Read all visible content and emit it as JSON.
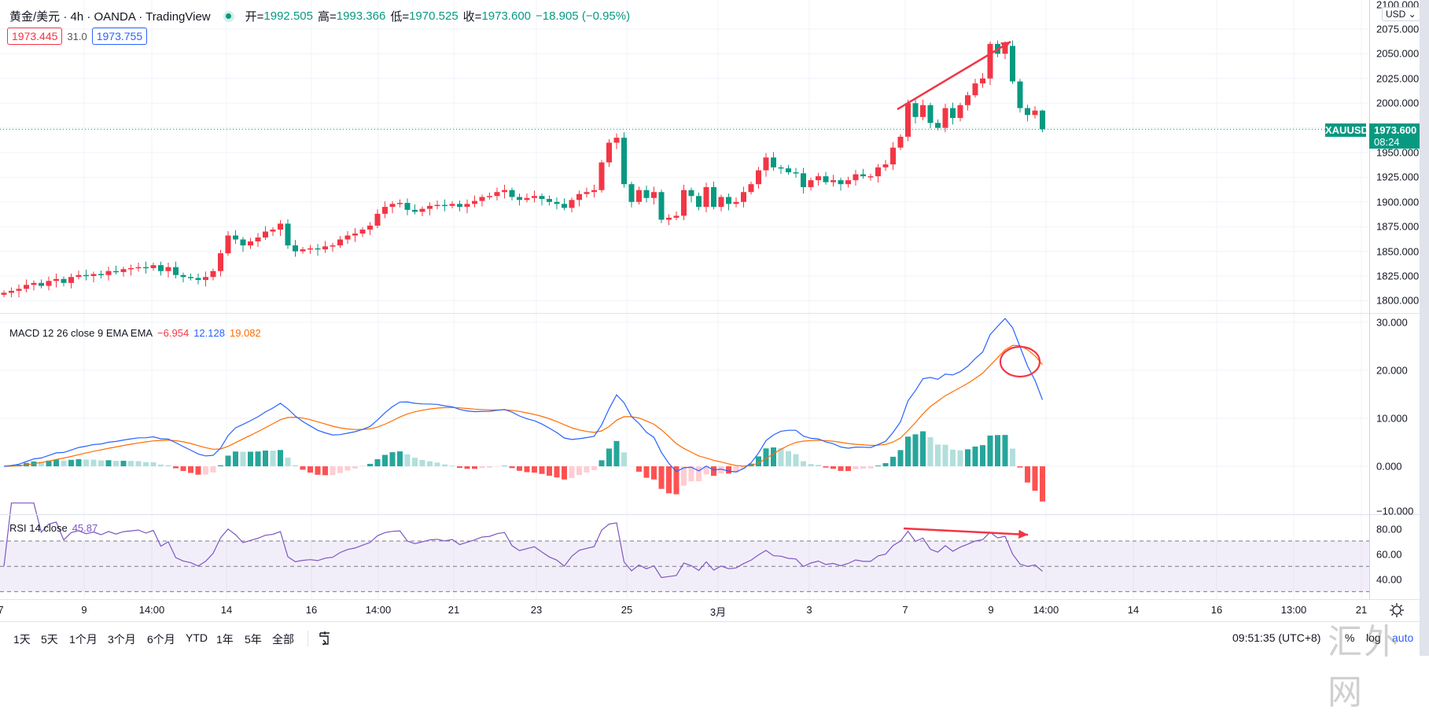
{
  "header": {
    "title": "黄金/美元 · 4h · OANDA · TradingView",
    "ohlc": {
      "open_label": "开=",
      "open": "1992.505",
      "high_label": "高=",
      "high": "1993.366",
      "low_label": "低=",
      "low": "1970.525",
      "close_label": "收=",
      "close": "1973.600",
      "change": "−18.905 (−0.95%)"
    },
    "bid": "1973.445",
    "spread": "31.0",
    "ask": "1973.755"
  },
  "axis": {
    "currency": "USD ⌄",
    "price_labels": [
      "2100.000",
      "2075.000",
      "2050.000",
      "2025.000",
      "2000.000",
      "1950.000",
      "1925.000",
      "1900.000",
      "1875.000",
      "1850.000",
      "1825.000",
      "1800.000"
    ],
    "macd_labels": [
      "30.000",
      "20.000",
      "10.000",
      "0.000",
      "−10.000"
    ],
    "rsi_labels": [
      "80.00",
      "60.00",
      "40.00"
    ],
    "symbol_tag": "XAUUSD",
    "last_price": "1973.600",
    "countdown": "08:24"
  },
  "macd": {
    "legend": "MACD 12 26 close 9 EMA EMA",
    "hist": "−6.954",
    "macd": "12.128",
    "signal": "19.082"
  },
  "rsi": {
    "legend": "RSI 14 close",
    "value": "45.87"
  },
  "time_labels": [
    "7",
    "9",
    "14:00",
    "14",
    "16",
    "14:00",
    "21",
    "23",
    "25",
    "3月",
    "3",
    "7",
    "9",
    "14:00",
    "14",
    "16",
    "13:00",
    "21"
  ],
  "toolbar": {
    "ranges": [
      "1天",
      "5天",
      "1个月",
      "3个月",
      "6个月",
      "YTD",
      "1年",
      "5年",
      "全部"
    ],
    "clock": "09:51:35 (UTC+8)",
    "percent": "%",
    "log": "log",
    "auto": "auto"
  },
  "watermark": "汇外网",
  "colors": {
    "up": "#f23645",
    "down": "#089981",
    "macd": "#2962ff",
    "signal": "#ff6d00",
    "rsi": "#7e57c2",
    "annotation": "#f23645"
  },
  "chart_data": {
    "type": "candlestick",
    "symbol": "XAUUSD",
    "interval": "4h",
    "ylim": [
      1787,
      2100
    ],
    "closes": [
      1808,
      1810,
      1812,
      1816,
      1818,
      1815,
      1820,
      1822,
      1818,
      1824,
      1826,
      1825,
      1827,
      1826,
      1830,
      1829,
      1832,
      1833,
      1834,
      1833,
      1836,
      1830,
      1834,
      1826,
      1824,
      1823,
      1821,
      1824,
      1830,
      1848,
      1866,
      1862,
      1856,
      1860,
      1864,
      1870,
      1872,
      1878,
      1856,
      1850,
      1852,
      1853,
      1852,
      1855,
      1856,
      1862,
      1866,
      1868,
      1872,
      1876,
      1888,
      1895,
      1898,
      1899,
      1892,
      1890,
      1893,
      1896,
      1897,
      1896,
      1898,
      1895,
      1898,
      1901,
      1905,
      1906,
      1910,
      1912,
      1905,
      1902,
      1904,
      1906,
      1903,
      1900,
      1898,
      1894,
      1902,
      1908,
      1910,
      1912,
      1940,
      1960,
      1965,
      1918,
      1900,
      1912,
      1904,
      1910,
      1882,
      1884,
      1886,
      1912,
      1906,
      1895,
      1915,
      1895,
      1905,
      1898,
      1900,
      1910,
      1918,
      1932,
      1945,
      1935,
      1934,
      1930,
      1929,
      1915,
      1922,
      1926,
      1920,
      1922,
      1918,
      1922,
      1928,
      1926,
      1926,
      1935,
      1938,
      1955,
      1966,
      2000,
      1986,
      1998,
      1980,
      1975,
      1995,
      1985,
      1998,
      2008,
      2020,
      2025,
      2060,
      2050,
      2058,
      2022,
      1995,
      1988,
      1992.505,
      1973.6
    ],
    "last_candle": {
      "open": 1992.505,
      "high": 1993.366,
      "low": 1970.525,
      "close": 1973.6
    },
    "macd_params": [
      12,
      26,
      9
    ],
    "rsi_period": 14,
    "rsi_bands": [
      70,
      50,
      30
    ]
  }
}
